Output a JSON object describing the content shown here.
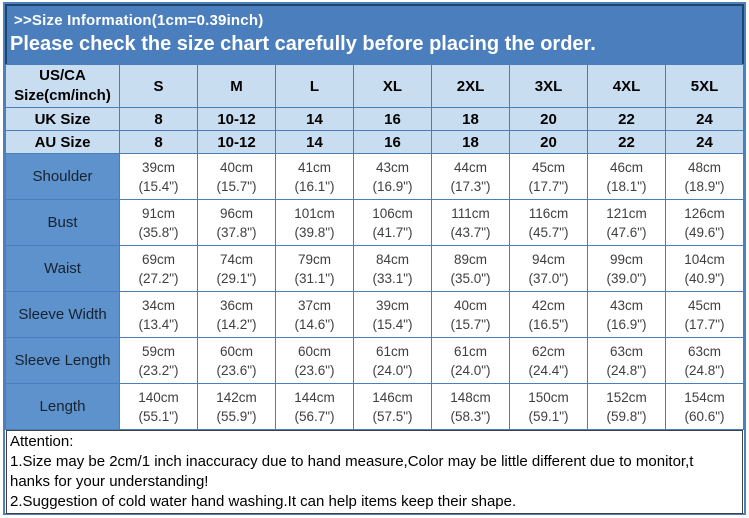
{
  "banner": {
    "title": ">>Size Information(1cm=0.39inch)",
    "subtitle": "Please check the size chart carefully before placing the order."
  },
  "table": {
    "header": {
      "label_line1": "US/CA",
      "label_line2": "Size(cm/inch)",
      "sizes": [
        "S",
        "M",
        "L",
        "XL",
        "2XL",
        "3XL",
        "4XL",
        "5XL"
      ]
    },
    "uk_row": {
      "label": "UK Size",
      "values": [
        "8",
        "10-12",
        "14",
        "16",
        "18",
        "20",
        "22",
        "24"
      ]
    },
    "au_row": {
      "label": "AU Size",
      "values": [
        "8",
        "10-12",
        "14",
        "16",
        "18",
        "20",
        "22",
        "24"
      ]
    },
    "measure_rows": [
      {
        "label": "Shoulder",
        "values": [
          {
            "cm": "39cm",
            "inch": "(15.4\")"
          },
          {
            "cm": "40cm",
            "inch": "(15.7\")"
          },
          {
            "cm": "41cm",
            "inch": "(16.1\")"
          },
          {
            "cm": "43cm",
            "inch": "(16.9\")"
          },
          {
            "cm": "44cm",
            "inch": "(17.3\")"
          },
          {
            "cm": "45cm",
            "inch": "(17.7\")"
          },
          {
            "cm": "46cm",
            "inch": "(18.1\")"
          },
          {
            "cm": "48cm",
            "inch": "(18.9\")"
          }
        ]
      },
      {
        "label": "Bust",
        "values": [
          {
            "cm": "91cm",
            "inch": "(35.8\")"
          },
          {
            "cm": "96cm",
            "inch": "(37.8\")"
          },
          {
            "cm": "101cm",
            "inch": "(39.8\")"
          },
          {
            "cm": "106cm",
            "inch": "(41.7\")"
          },
          {
            "cm": "111cm",
            "inch": "(43.7\")"
          },
          {
            "cm": "116cm",
            "inch": "(45.7\")"
          },
          {
            "cm": "121cm",
            "inch": "(47.6\")"
          },
          {
            "cm": "126cm",
            "inch": "(49.6\")"
          }
        ]
      },
      {
        "label": "Waist",
        "values": [
          {
            "cm": "69cm",
            "inch": "(27.2\")"
          },
          {
            "cm": "74cm",
            "inch": "(29.1\")"
          },
          {
            "cm": "79cm",
            "inch": "(31.1\")"
          },
          {
            "cm": "84cm",
            "inch": "(33.1\")"
          },
          {
            "cm": "89cm",
            "inch": "(35.0\")"
          },
          {
            "cm": "94cm",
            "inch": "(37.0\")"
          },
          {
            "cm": "99cm",
            "inch": "(39.0\")"
          },
          {
            "cm": "104cm",
            "inch": "(40.9\")"
          }
        ]
      },
      {
        "label": "Sleeve Width",
        "values": [
          {
            "cm": "34cm",
            "inch": "(13.4\")"
          },
          {
            "cm": "36cm",
            "inch": "(14.2\")"
          },
          {
            "cm": "37cm",
            "inch": "(14.6\")"
          },
          {
            "cm": "39cm",
            "inch": "(15.4\")"
          },
          {
            "cm": "40cm",
            "inch": "(15.7\")"
          },
          {
            "cm": "42cm",
            "inch": "(16.5\")"
          },
          {
            "cm": "43cm",
            "inch": "(16.9\")"
          },
          {
            "cm": "45cm",
            "inch": "(17.7\")"
          }
        ]
      },
      {
        "label": "Sleeve Length",
        "values": [
          {
            "cm": "59cm",
            "inch": "(23.2\")"
          },
          {
            "cm": "60cm",
            "inch": "(23.6\")"
          },
          {
            "cm": "60cm",
            "inch": "(23.6\")"
          },
          {
            "cm": "61cm",
            "inch": "(24.0\")"
          },
          {
            "cm": "61cm",
            "inch": "(24.0\")"
          },
          {
            "cm": "62cm",
            "inch": "(24.4\")"
          },
          {
            "cm": "63cm",
            "inch": "(24.8\")"
          },
          {
            "cm": "63cm",
            "inch": "(24.8\")"
          }
        ]
      },
      {
        "label": "Length",
        "values": [
          {
            "cm": "140cm",
            "inch": "(55.1\")"
          },
          {
            "cm": "142cm",
            "inch": "(55.9\")"
          },
          {
            "cm": "144cm",
            "inch": "(56.7\")"
          },
          {
            "cm": "146cm",
            "inch": "(57.5\")"
          },
          {
            "cm": "148cm",
            "inch": "(58.3\")"
          },
          {
            "cm": "150cm",
            "inch": "(59.1\")"
          },
          {
            "cm": "152cm",
            "inch": "(59.8\")"
          },
          {
            "cm": "154cm",
            "inch": "(60.6\")"
          }
        ]
      }
    ]
  },
  "attention": {
    "lines": [
      "Attention:",
      "1.Size may be 2cm/1 inch inaccuracy due to hand measure,Color may be little different due to monitor,t",
      "hanks for your understanding!",
      "2.Suggestion of cold water hand washing.It can help items keep their shape."
    ]
  },
  "colors": {
    "banner_blue": "#4b7ebc",
    "banner_border_navy": "#1c4670",
    "header_cell_blue": "#c9ddf1",
    "label_cell_blue": "#5d92cc",
    "grid_border_blue": "#4a7ebb",
    "outer_border_blue": "#4f81bd",
    "data_text": "#3f3f3f",
    "attention_border": "#404040"
  }
}
